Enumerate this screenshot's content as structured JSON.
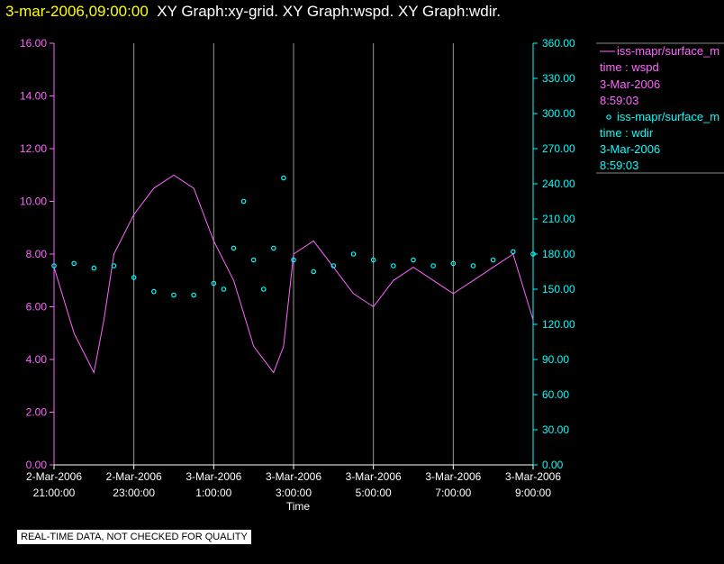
{
  "header": {
    "timestamp": "3-mar-2006,09:00:00",
    "graphs": "XY Graph:xy-grid.  XY Graph:wspd.  XY Graph:wdir."
  },
  "legend": [
    {
      "series": "iss-mapr/surface_m",
      "field": "time : wspd",
      "date": "3-Mar-2006",
      "time": "8:59:03",
      "color": "#ff66ff"
    },
    {
      "series": "iss-mapr/surface_m",
      "field": "time : wdir",
      "date": "3-Mar-2006",
      "time": "8:59:03",
      "color": "#00ffff"
    }
  ],
  "notice": "REAL-TIME DATA, NOT CHECKED FOR QUALITY",
  "chart_data": {
    "type": "line",
    "xlabel": "Time",
    "x_ticks": [
      {
        "d": "2-Mar-2006",
        "t": "21:00:00"
      },
      {
        "d": "2-Mar-2006",
        "t": "23:00:00"
      },
      {
        "d": "3-Mar-2006",
        "t": "1:00:00"
      },
      {
        "d": "3-Mar-2006",
        "t": "3:00:00"
      },
      {
        "d": "3-Mar-2006",
        "t": "5:00:00"
      },
      {
        "d": "3-Mar-2006",
        "t": "7:00:00"
      },
      {
        "d": "3-Mar-2006",
        "t": "9:00:00"
      }
    ],
    "x_range": [
      "2-Mar-2006 21:00:00",
      "3-Mar-2006 09:00:00"
    ],
    "y_left": {
      "ticks": [
        "0.00",
        "2.00",
        "4.00",
        "6.00",
        "8.00",
        "10.00",
        "12.00",
        "14.00",
        "16.00"
      ],
      "range": [
        0,
        16
      ],
      "color": "#ff66ff"
    },
    "y_right": {
      "ticks": [
        "0.00",
        "30.00",
        "60.00",
        "90.00",
        "120.00",
        "150.00",
        "180.00",
        "210.00",
        "240.00",
        "270.00",
        "300.00",
        "330.00",
        "360.00"
      ],
      "range": [
        0,
        360
      ],
      "color": "#00ffff"
    },
    "grid": "vertical lines at x ticks",
    "series": [
      {
        "field": "wspd",
        "axis": "left",
        "style": "line",
        "points": [
          [
            "2-Mar-2006 21:00",
            7.5
          ],
          [
            "2-Mar-2006 21:30",
            5.0
          ],
          [
            "2-Mar-2006 22:00",
            3.5
          ],
          [
            "2-Mar-2006 22:15",
            5.5
          ],
          [
            "2-Mar-2006 22:30",
            8.0
          ],
          [
            "2-Mar-2006 23:00",
            9.5
          ],
          [
            "2-Mar-2006 23:30",
            10.5
          ],
          [
            "3-Mar-2006 00:00",
            11.0
          ],
          [
            "3-Mar-2006 00:30",
            10.5
          ],
          [
            "3-Mar-2006 01:00",
            8.5
          ],
          [
            "3-Mar-2006 01:30",
            7.0
          ],
          [
            "3-Mar-2006 02:00",
            4.5
          ],
          [
            "3-Mar-2006 02:30",
            3.5
          ],
          [
            "3-Mar-2006 02:45",
            4.5
          ],
          [
            "3-Mar-2006 03:00",
            8.0
          ],
          [
            "3-Mar-2006 03:30",
            8.5
          ],
          [
            "3-Mar-2006 04:00",
            7.5
          ],
          [
            "3-Mar-2006 04:30",
            6.5
          ],
          [
            "3-Mar-2006 05:00",
            6.0
          ],
          [
            "3-Mar-2006 05:30",
            7.0
          ],
          [
            "3-Mar-2006 06:00",
            7.5
          ],
          [
            "3-Mar-2006 06:30",
            7.0
          ],
          [
            "3-Mar-2006 07:00",
            6.5
          ],
          [
            "3-Mar-2006 07:30",
            7.0
          ],
          [
            "3-Mar-2006 08:00",
            7.5
          ],
          [
            "3-Mar-2006 08:30",
            8.0
          ],
          [
            "3-Mar-2006 09:00",
            5.5
          ]
        ]
      },
      {
        "field": "wdir",
        "axis": "right",
        "style": "scatter",
        "points": [
          [
            "2-Mar-2006 21:00",
            170
          ],
          [
            "2-Mar-2006 21:30",
            172
          ],
          [
            "2-Mar-2006 22:00",
            168
          ],
          [
            "2-Mar-2006 22:30",
            170
          ],
          [
            "2-Mar-2006 23:00",
            160
          ],
          [
            "2-Mar-2006 23:30",
            148
          ],
          [
            "3-Mar-2006 00:00",
            145
          ],
          [
            "3-Mar-2006 00:30",
            145
          ],
          [
            "3-Mar-2006 01:00",
            155
          ],
          [
            "3-Mar-2006 01:15",
            150
          ],
          [
            "3-Mar-2006 01:30",
            185
          ],
          [
            "3-Mar-2006 01:45",
            225
          ],
          [
            "3-Mar-2006 02:00",
            175
          ],
          [
            "3-Mar-2006 02:15",
            150
          ],
          [
            "3-Mar-2006 02:30",
            185
          ],
          [
            "3-Mar-2006 02:45",
            245
          ],
          [
            "3-Mar-2006 03:00",
            175
          ],
          [
            "3-Mar-2006 03:30",
            165
          ],
          [
            "3-Mar-2006 04:00",
            170
          ],
          [
            "3-Mar-2006 04:30",
            180
          ],
          [
            "3-Mar-2006 05:00",
            175
          ],
          [
            "3-Mar-2006 05:30",
            170
          ],
          [
            "3-Mar-2006 06:00",
            175
          ],
          [
            "3-Mar-2006 06:30",
            170
          ],
          [
            "3-Mar-2006 07:00",
            172
          ],
          [
            "3-Mar-2006 07:30",
            170
          ],
          [
            "3-Mar-2006 08:00",
            175
          ],
          [
            "3-Mar-2006 08:30",
            182
          ],
          [
            "3-Mar-2006 09:00",
            180
          ]
        ]
      }
    ]
  }
}
